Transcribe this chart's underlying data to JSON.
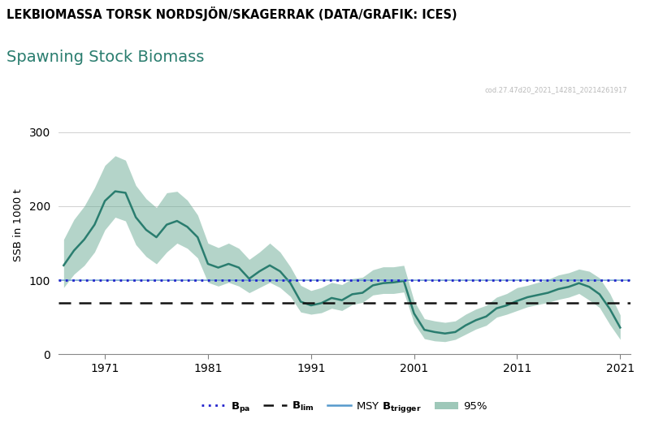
{
  "title_main": "LEKBIOMASSA TORSK NORDSJÖN/SKAGERRAK (DATA/GRAFIK: ICES)",
  "title_sub": "Spawning Stock Biomass",
  "watermark": "cod.27.47d20_2021_14281_20214261917",
  "ylabel": "SSB in 1000 t",
  "xlim": [
    1966.5,
    2022
  ],
  "ylim": [
    0,
    350
  ],
  "yticks": [
    0,
    100,
    200,
    300
  ],
  "xticks": [
    1971,
    1981,
    1991,
    2001,
    2011,
    2021
  ],
  "B_pa": 100,
  "B_lim": 69,
  "line_color": "#2a7d6f",
  "fill_color": "#6aab94",
  "Bpa_color": "#2222cc",
  "Blim_color": "#111111",
  "MSY_color": "#5599cc",
  "years": [
    1967,
    1968,
    1969,
    1970,
    1971,
    1972,
    1973,
    1974,
    1975,
    1976,
    1977,
    1978,
    1979,
    1980,
    1981,
    1982,
    1983,
    1984,
    1985,
    1986,
    1987,
    1988,
    1989,
    1990,
    1991,
    1992,
    1993,
    1994,
    1995,
    1996,
    1997,
    1998,
    1999,
    2000,
    2001,
    2002,
    2003,
    2004,
    2005,
    2006,
    2007,
    2008,
    2009,
    2010,
    2011,
    2012,
    2013,
    2014,
    2015,
    2016,
    2017,
    2018,
    2019,
    2020,
    2021
  ],
  "ssb": [
    120,
    140,
    155,
    175,
    207,
    220,
    218,
    185,
    168,
    158,
    175,
    180,
    172,
    158,
    122,
    117,
    122,
    117,
    102,
    112,
    120,
    112,
    96,
    71,
    66,
    69,
    76,
    73,
    81,
    83,
    93,
    96,
    97,
    99,
    55,
    33,
    30,
    28,
    30,
    39,
    46,
    51,
    62,
    66,
    72,
    77,
    80,
    83,
    88,
    91,
    96,
    91,
    81,
    61,
    36
  ],
  "ssb_low": [
    90,
    108,
    120,
    138,
    168,
    185,
    180,
    148,
    132,
    122,
    138,
    150,
    143,
    130,
    97,
    92,
    97,
    92,
    83,
    90,
    97,
    90,
    78,
    57,
    54,
    56,
    62,
    59,
    67,
    70,
    80,
    82,
    82,
    84,
    42,
    21,
    18,
    17,
    20,
    27,
    34,
    39,
    50,
    54,
    59,
    64,
    67,
    70,
    74,
    77,
    82,
    73,
    63,
    40,
    20
  ],
  "ssb_high": [
    155,
    182,
    200,
    225,
    255,
    268,
    262,
    228,
    210,
    198,
    218,
    220,
    208,
    188,
    150,
    144,
    150,
    143,
    128,
    138,
    150,
    138,
    118,
    93,
    86,
    90,
    97,
    94,
    102,
    104,
    114,
    118,
    118,
    120,
    72,
    48,
    45,
    43,
    45,
    54,
    61,
    66,
    77,
    82,
    90,
    93,
    97,
    101,
    107,
    110,
    115,
    112,
    103,
    82,
    53
  ]
}
